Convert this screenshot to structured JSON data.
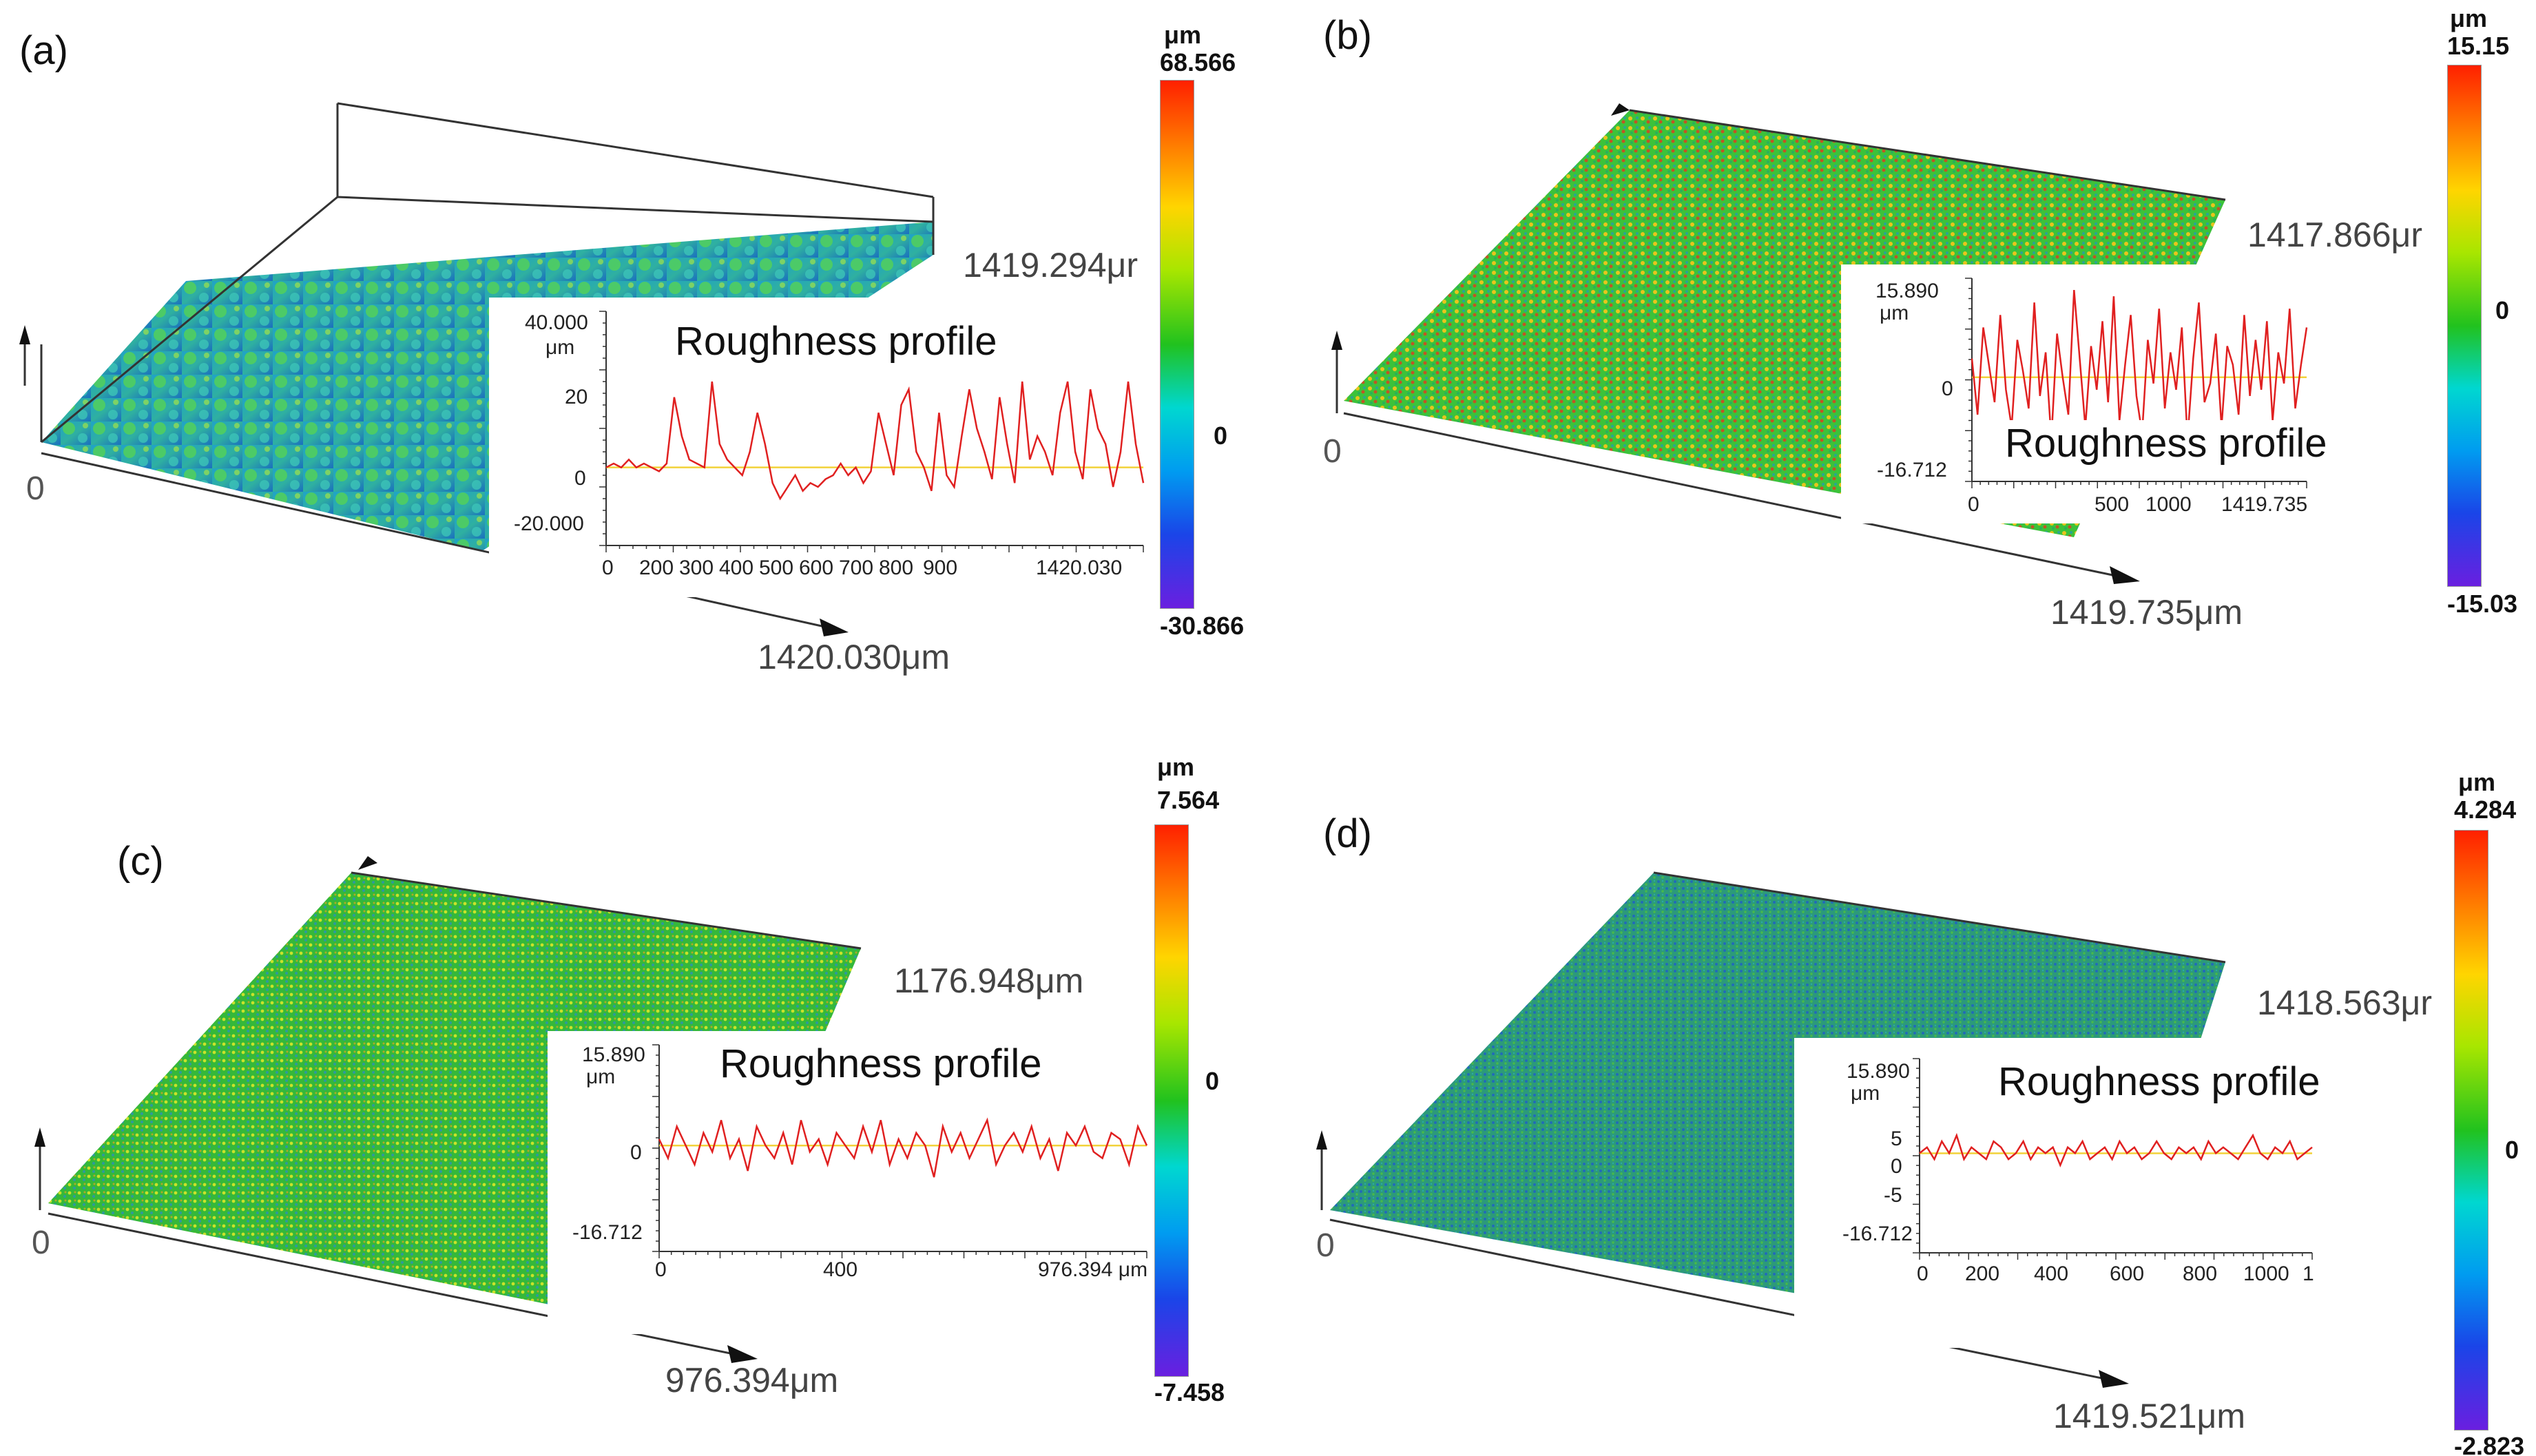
{
  "colors": {
    "profile_line": "#e02020",
    "mean_line": "#f2d23a",
    "axis": "#333333"
  },
  "panels": [
    {
      "id": "a",
      "label": "(a)",
      "width_label": "1419.294μr",
      "length_label": "1420.030μm",
      "origin_label": "0",
      "colorbar": {
        "unit": "μm",
        "max": "68.566",
        "zero": "0",
        "min": "-30.866"
      },
      "inset": {
        "title": "Roughness profile",
        "y_unit": "μm",
        "y_ticks": [
          "40.000",
          "20",
          "0",
          "-20.000"
        ],
        "x_ticks": [
          "0",
          "200",
          "300",
          "400",
          "500",
          "600",
          "700",
          "800",
          "900",
          "1420.030"
        ],
        "chart_data": {
          "type": "line",
          "title": "Roughness profile",
          "ylim": [
            -20,
            40
          ],
          "xlim": [
            0,
            1420.03
          ],
          "mean": 0,
          "y": [
            0,
            1,
            0,
            2,
            0,
            1,
            0,
            -1,
            1,
            18,
            8,
            2,
            1,
            0,
            22,
            6,
            2,
            0,
            -2,
            4,
            14,
            6,
            -4,
            -8,
            -5,
            -2,
            -6,
            -4,
            -5,
            -3,
            -2,
            1,
            -2,
            0,
            -4,
            -1,
            14,
            6,
            -2,
            16,
            20,
            4,
            0,
            -6,
            14,
            -2,
            -5,
            8,
            20,
            10,
            4,
            -3,
            18,
            6,
            -4,
            22,
            2,
            8,
            4,
            -2,
            14,
            22,
            4,
            -3,
            20,
            10,
            6,
            -5,
            4,
            22,
            6,
            -4
          ]
        }
      }
    },
    {
      "id": "b",
      "label": "(b)",
      "width_label": "1417.866μr",
      "length_label": "1419.735μm",
      "origin_label": "0",
      "colorbar": {
        "unit": "μm",
        "max": "15.15",
        "zero": "0",
        "min": "-15.03"
      },
      "inset": {
        "title": "Roughness profile",
        "y_unit": "μm",
        "y_ticks": [
          "15.890",
          "0",
          "-16.712"
        ],
        "x_ticks": [
          "0",
          "500",
          "1000",
          "1419.735"
        ],
        "chart_data": {
          "type": "line",
          "title": "Roughness profile",
          "ylim": [
            -16.712,
            15.89
          ],
          "xlim": [
            0,
            1419.735
          ],
          "mean": 0,
          "y": [
            3,
            -6,
            8,
            2,
            -4,
            10,
            -2,
            -8,
            6,
            1,
            -5,
            12,
            -3,
            4,
            -10,
            7,
            0,
            -6,
            14,
            3,
            -8,
            5,
            -2,
            9,
            -4,
            13,
            -7,
            2,
            10,
            -3,
            -9,
            6,
            -1,
            11,
            -5,
            4,
            -2,
            8,
            -10,
            3,
            12,
            -4,
            -1,
            7,
            -8,
            5,
            2,
            -6,
            10,
            -3,
            6,
            -2,
            9,
            -7,
            4,
            -1,
            11,
            -5,
            2,
            8
          ]
        }
      }
    },
    {
      "id": "c",
      "label": "(c)",
      "width_label": "1176.948μm",
      "length_label": "976.394μm",
      "origin_label": "0",
      "colorbar": {
        "unit": "μm",
        "max": "7.564",
        "zero": "0",
        "min": "-7.458"
      },
      "inset": {
        "title": "Roughness profile",
        "y_unit": "μm",
        "y_ticks": [
          "15.890",
          "0",
          "-16.712"
        ],
        "x_ticks": [
          "0",
          "400",
          "976.394 μm"
        ],
        "chart_data": {
          "type": "line",
          "title": "Roughness profile",
          "ylim": [
            -16.712,
            15.89
          ],
          "xlim": [
            0,
            976.394
          ],
          "mean": 0,
          "y": [
            1,
            -2,
            3,
            0,
            -3,
            2,
            -1,
            4,
            -2,
            1,
            -4,
            3,
            0,
            -2,
            2,
            -3,
            4,
            -1,
            1,
            -3,
            2,
            0,
            -2,
            3,
            -1,
            4,
            -3,
            1,
            -2,
            2,
            0,
            -5,
            3,
            -1,
            2,
            -2,
            1,
            4,
            -3,
            0,
            2,
            -1,
            3,
            -2,
            1,
            -4,
            2,
            0,
            3,
            -1,
            -2,
            2,
            1,
            -3,
            3,
            0
          ]
        }
      }
    },
    {
      "id": "d",
      "label": "(d)",
      "width_label": "1418.563μr",
      "length_label": "1419.521μm",
      "origin_label": "0",
      "colorbar": {
        "unit": "μm",
        "max": "4.284",
        "zero": "0",
        "min": "-2.823"
      },
      "inset": {
        "title": "Roughness profile",
        "y_unit": "μm",
        "y_ticks": [
          "15.890",
          "5",
          "0",
          "-5",
          "-16.712"
        ],
        "x_ticks": [
          "0",
          "200",
          "400",
          "600",
          "800",
          "1000",
          "1"
        ],
        "chart_data": {
          "type": "line",
          "title": "Roughness profile",
          "ylim": [
            -16.712,
            15.89
          ],
          "xlim": [
            0,
            1419.521
          ],
          "mean": 0,
          "y": [
            0,
            1,
            -1,
            2,
            0,
            3,
            -1,
            1,
            0,
            -1,
            2,
            1,
            -1,
            0,
            2,
            -1,
            1,
            0,
            1,
            -2,
            1,
            0,
            2,
            -1,
            0,
            1,
            -1,
            2,
            0,
            1,
            -1,
            0,
            2,
            0,
            -1,
            1,
            0,
            1,
            -1,
            2,
            0,
            1,
            0,
            -1,
            1,
            3,
            0,
            -1,
            1,
            0,
            2,
            -1,
            0,
            1
          ]
        }
      }
    }
  ]
}
